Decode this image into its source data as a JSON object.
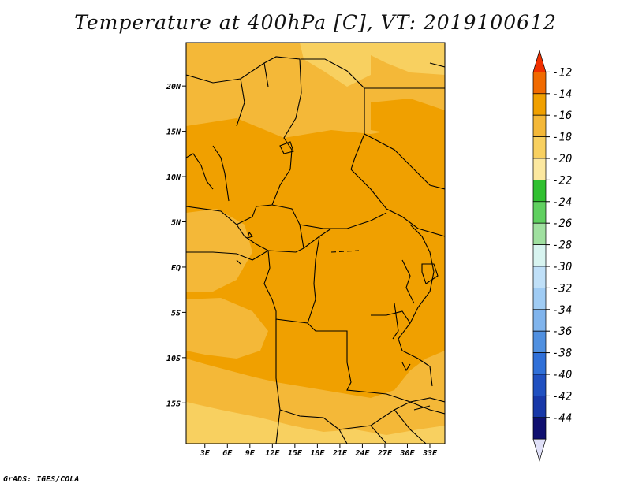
{
  "title": "Temperature at 400hPa [C], VT: 2019100612",
  "footer": "GrADS: IGES/COLA",
  "map": {
    "lat_labels": [
      "20N",
      "15N",
      "10N",
      "5N",
      "EQ",
      "5S",
      "10S",
      "15S"
    ],
    "lat_values": [
      20,
      15,
      10,
      5,
      0,
      -5,
      -10,
      -15
    ],
    "lon_labels": [
      "3E",
      "6E",
      "9E",
      "12E",
      "15E",
      "18E",
      "21E",
      "24E",
      "27E",
      "30E",
      "33E"
    ],
    "lon_values": [
      3,
      6,
      9,
      12,
      15,
      18,
      21,
      24,
      27,
      30,
      33
    ],
    "lon_range": [
      0.5,
      35
    ],
    "lat_range": [
      -19.5,
      24.8
    ]
  },
  "colorbar": {
    "labels": [
      "-12",
      "-14",
      "-16",
      "-18",
      "-20",
      "-22",
      "-24",
      "-26",
      "-28",
      "-30",
      "-32",
      "-34",
      "-36",
      "-38",
      "-40",
      "-42",
      "-44"
    ],
    "colors": [
      "#f03000",
      "#f06a00",
      "#f0a000",
      "#f4b838",
      "#f8d060",
      "#fce8a0",
      "#30c030",
      "#60d060",
      "#a0e0a0",
      "#d8f4f0",
      "#c0e0f8",
      "#a0ccf4",
      "#80b4ec",
      "#5090e0",
      "#3070d8",
      "#2050c0",
      "#1838a8",
      "#101070",
      "#e0e0f8"
    ]
  }
}
